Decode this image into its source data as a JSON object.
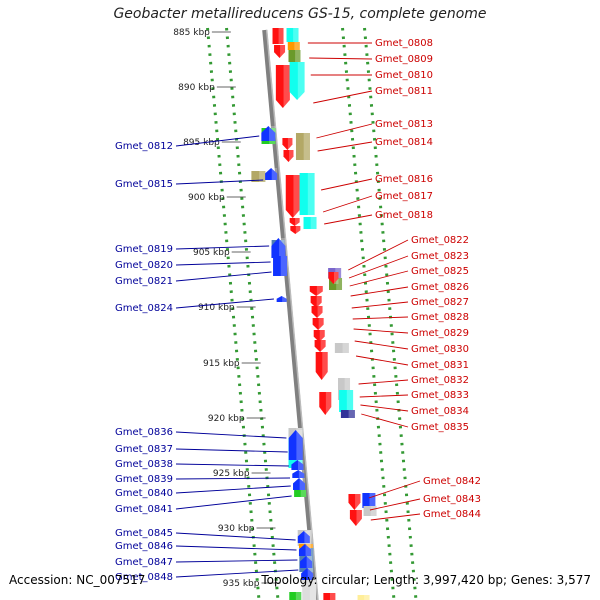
{
  "title": "Geobacter metallireducens GS-15, complete genome",
  "footer": {
    "accession": "Accession: NC_007517",
    "topology": "Topology: circular; Length: 3,997,420 bp; Genes: 3,577"
  },
  "colors": {
    "right_label": "#cc0000",
    "left_label": "#000099",
    "tick_dots": "#339933",
    "backbone": "#808080"
  },
  "ticks": [
    "885 kbp",
    "890 kbp",
    "895 kbp",
    "900 kbp",
    "905 kbp",
    "910 kbp",
    "915 kbp",
    "920 kbp",
    "925 kbp",
    "930 kbp",
    "935 kbp"
  ],
  "right_genes": [
    "Gmet_0808",
    "Gmet_0809",
    "Gmet_0810",
    "Gmet_0811",
    "Gmet_0813",
    "Gmet_0814",
    "Gmet_0816",
    "Gmet_0817",
    "Gmet_0818",
    "Gmet_0822",
    "Gmet_0823",
    "Gmet_0825",
    "Gmet_0826",
    "Gmet_0827",
    "Gmet_0828",
    "Gmet_0829",
    "Gmet_0830",
    "Gmet_0831",
    "Gmet_0832",
    "Gmet_0833",
    "Gmet_0834",
    "Gmet_0835",
    "Gmet_0842",
    "Gmet_0843",
    "Gmet_0844"
  ],
  "left_genes": [
    "Gmet_0812",
    "Gmet_0815",
    "Gmet_0819",
    "Gmet_0820",
    "Gmet_0821",
    "Gmet_0824",
    "Gmet_0836",
    "Gmet_0837",
    "Gmet_0838",
    "Gmet_0839",
    "Gmet_0840",
    "Gmet_0841",
    "Gmet_0845",
    "Gmet_0846",
    "Gmet_0847",
    "Gmet_0848"
  ]
}
